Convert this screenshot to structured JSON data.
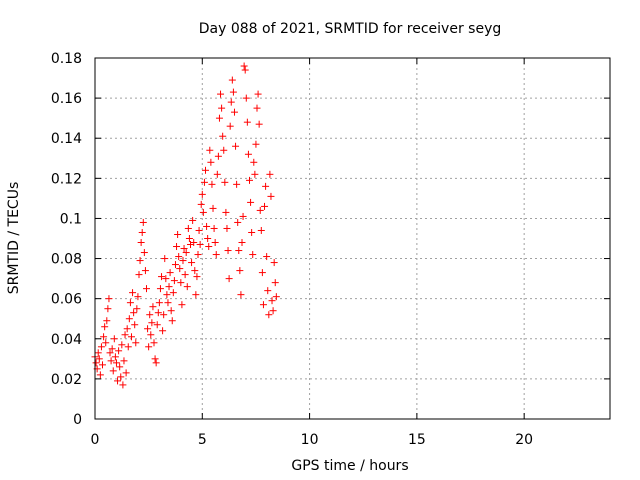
{
  "chart_data": {
    "type": "scatter",
    "title": "Day 088 of 2021, SRMTID for receiver seyg",
    "xlabel": "GPS time / hours",
    "ylabel": "SRMTID / TECUs",
    "xlim": [
      0,
      24
    ],
    "ylim": [
      0,
      0.18
    ],
    "grid": true,
    "x_ticks": [
      0,
      5,
      10,
      15,
      20
    ],
    "y_ticks": [
      0,
      0.02,
      0.04,
      0.06,
      0.08,
      0.1,
      0.12,
      0.14,
      0.16,
      0.18
    ],
    "x_tick_labels": [
      "0",
      "5",
      "10",
      "15",
      "20"
    ],
    "y_tick_labels": [
      "0",
      "0.02",
      "0.04",
      "0.06",
      "0.08",
      "0.1",
      "0.12",
      "0.14",
      "0.16",
      "0.18"
    ],
    "marker": "plus",
    "color": "#ff0000",
    "series": [
      {
        "name": "SRMTID",
        "points": [
          [
            0.0,
            0.031
          ],
          [
            0.05,
            0.028
          ],
          [
            0.1,
            0.025
          ],
          [
            0.15,
            0.033
          ],
          [
            0.2,
            0.03
          ],
          [
            0.25,
            0.022
          ],
          [
            0.3,
            0.036
          ],
          [
            0.35,
            0.027
          ],
          [
            0.4,
            0.041
          ],
          [
            0.45,
            0.046
          ],
          [
            0.5,
            0.038
          ],
          [
            0.55,
            0.049
          ],
          [
            0.6,
            0.055
          ],
          [
            0.65,
            0.06
          ],
          [
            0.7,
            0.033
          ],
          [
            0.75,
            0.029
          ],
          [
            0.8,
            0.035
          ],
          [
            0.85,
            0.024
          ],
          [
            0.9,
            0.04
          ],
          [
            0.95,
            0.031
          ],
          [
            1.0,
            0.028
          ],
          [
            1.05,
            0.019
          ],
          [
            1.1,
            0.034
          ],
          [
            1.15,
            0.026
          ],
          [
            1.2,
            0.021
          ],
          [
            1.25,
            0.037
          ],
          [
            1.3,
            0.017
          ],
          [
            1.35,
            0.029
          ],
          [
            1.4,
            0.042
          ],
          [
            1.45,
            0.023
          ],
          [
            1.5,
            0.045
          ],
          [
            1.55,
            0.036
          ],
          [
            1.6,
            0.05
          ],
          [
            1.65,
            0.058
          ],
          [
            1.7,
            0.041
          ],
          [
            1.75,
            0.063
          ],
          [
            1.8,
            0.053
          ],
          [
            1.85,
            0.047
          ],
          [
            1.9,
            0.038
          ],
          [
            1.95,
            0.055
          ],
          [
            2.0,
            0.061
          ],
          [
            2.05,
            0.072
          ],
          [
            2.1,
            0.079
          ],
          [
            2.15,
            0.088
          ],
          [
            2.2,
            0.093
          ],
          [
            2.25,
            0.098
          ],
          [
            2.3,
            0.083
          ],
          [
            2.35,
            0.074
          ],
          [
            2.4,
            0.065
          ],
          [
            2.45,
            0.045
          ],
          [
            2.5,
            0.036
          ],
          [
            2.55,
            0.052
          ],
          [
            2.6,
            0.042
          ],
          [
            2.65,
            0.048
          ],
          [
            2.7,
            0.056
          ],
          [
            2.75,
            0.038
          ],
          [
            2.8,
            0.03
          ],
          [
            2.85,
            0.028
          ],
          [
            2.9,
            0.047
          ],
          [
            2.95,
            0.053
          ],
          [
            3.0,
            0.058
          ],
          [
            3.05,
            0.065
          ],
          [
            3.1,
            0.071
          ],
          [
            3.15,
            0.044
          ],
          [
            3.2,
            0.052
          ],
          [
            3.25,
            0.08
          ],
          [
            3.3,
            0.07
          ],
          [
            3.35,
            0.062
          ],
          [
            3.4,
            0.058
          ],
          [
            3.45,
            0.066
          ],
          [
            3.5,
            0.073
          ],
          [
            3.55,
            0.054
          ],
          [
            3.6,
            0.049
          ],
          [
            3.65,
            0.063
          ],
          [
            3.7,
            0.069
          ],
          [
            3.75,
            0.077
          ],
          [
            3.8,
            0.086
          ],
          [
            3.85,
            0.092
          ],
          [
            3.9,
            0.081
          ],
          [
            3.95,
            0.075
          ],
          [
            4.0,
            0.068
          ],
          [
            4.05,
            0.057
          ],
          [
            4.1,
            0.079
          ],
          [
            4.15,
            0.085
          ],
          [
            4.2,
            0.072
          ],
          [
            4.25,
            0.083
          ],
          [
            4.3,
            0.066
          ],
          [
            4.35,
            0.095
          ],
          [
            4.4,
            0.09
          ],
          [
            4.45,
            0.087
          ],
          [
            4.5,
            0.078
          ],
          [
            4.55,
            0.099
          ],
          [
            4.6,
            0.088
          ],
          [
            4.65,
            0.074
          ],
          [
            4.7,
            0.062
          ],
          [
            4.75,
            0.071
          ],
          [
            4.8,
            0.082
          ],
          [
            4.85,
            0.094
          ],
          [
            4.9,
            0.087
          ],
          [
            4.95,
            0.107
          ],
          [
            5.0,
            0.112
          ],
          [
            5.05,
            0.103
          ],
          [
            5.1,
            0.118
          ],
          [
            5.15,
            0.124
          ],
          [
            5.2,
            0.096
          ],
          [
            5.25,
            0.09
          ],
          [
            5.3,
            0.086
          ],
          [
            5.35,
            0.134
          ],
          [
            5.4,
            0.128
          ],
          [
            5.45,
            0.117
          ],
          [
            5.5,
            0.105
          ],
          [
            5.55,
            0.095
          ],
          [
            5.6,
            0.088
          ],
          [
            5.65,
            0.082
          ],
          [
            5.7,
            0.122
          ],
          [
            5.75,
            0.131
          ],
          [
            5.8,
            0.15
          ],
          [
            5.85,
            0.162
          ],
          [
            5.9,
            0.155
          ],
          [
            5.95,
            0.141
          ],
          [
            6.0,
            0.134
          ],
          [
            6.05,
            0.118
          ],
          [
            6.1,
            0.103
          ],
          [
            6.15,
            0.095
          ],
          [
            6.2,
            0.084
          ],
          [
            6.25,
            0.07
          ],
          [
            6.3,
            0.146
          ],
          [
            6.35,
            0.158
          ],
          [
            6.4,
            0.169
          ],
          [
            6.45,
            0.163
          ],
          [
            6.5,
            0.153
          ],
          [
            6.55,
            0.136
          ],
          [
            6.6,
            0.117
          ],
          [
            6.65,
            0.098
          ],
          [
            6.7,
            0.084
          ],
          [
            6.75,
            0.074
          ],
          [
            6.8,
            0.062
          ],
          [
            6.85,
            0.088
          ],
          [
            6.9,
            0.101
          ],
          [
            6.95,
            0.176
          ],
          [
            7.0,
            0.174
          ],
          [
            7.05,
            0.16
          ],
          [
            7.1,
            0.148
          ],
          [
            7.15,
            0.132
          ],
          [
            7.2,
            0.119
          ],
          [
            7.25,
            0.108
          ],
          [
            7.3,
            0.093
          ],
          [
            7.35,
            0.082
          ],
          [
            7.4,
            0.128
          ],
          [
            7.45,
            0.122
          ],
          [
            7.5,
            0.137
          ],
          [
            7.55,
            0.155
          ],
          [
            7.6,
            0.162
          ],
          [
            7.65,
            0.147
          ],
          [
            7.7,
            0.104
          ],
          [
            7.75,
            0.094
          ],
          [
            7.8,
            0.073
          ],
          [
            7.85,
            0.057
          ],
          [
            7.9,
            0.106
          ],
          [
            7.95,
            0.116
          ],
          [
            8.0,
            0.081
          ],
          [
            8.05,
            0.064
          ],
          [
            8.1,
            0.052
          ],
          [
            8.15,
            0.122
          ],
          [
            8.2,
            0.111
          ],
          [
            8.25,
            0.059
          ],
          [
            8.3,
            0.054
          ],
          [
            8.35,
            0.078
          ],
          [
            8.4,
            0.068
          ],
          [
            8.45,
            0.061
          ]
        ]
      }
    ]
  }
}
